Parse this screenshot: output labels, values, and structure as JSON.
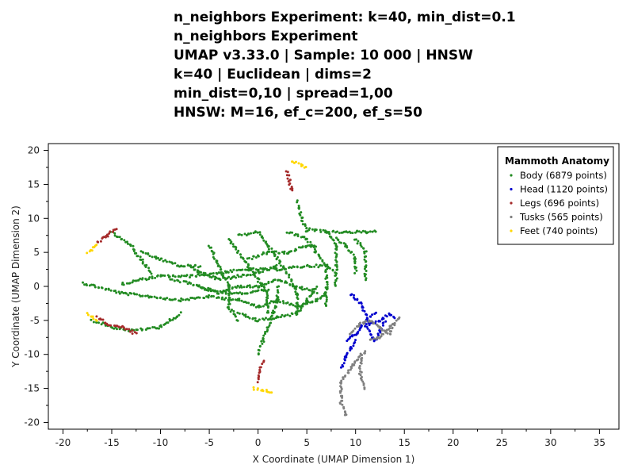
{
  "title_lines": [
    "n_neighbors Experiment: k=40, min_dist=0.1",
    "n_neighbors Experiment",
    "UMAP v3.33.0 | Sample: 10 000 | HNSW",
    "k=40 | Euclidean | dims=2",
    "min_dist=0,10 | spread=1,00",
    "HNSW: M=16, ef_c=200, ef_s=50"
  ],
  "chart_data": {
    "type": "scatter",
    "xlabel": "X Coordinate (UMAP Dimension 1)",
    "ylabel": "Y Coordinate (UMAP Dimension 2)",
    "xlim": [
      -21.5,
      37
    ],
    "ylim": [
      -21,
      21
    ],
    "xticks": [
      -20,
      -15,
      -10,
      -5,
      0,
      5,
      10,
      15,
      20,
      25,
      30,
      35
    ],
    "yticks": [
      -20,
      -15,
      -10,
      -5,
      0,
      5,
      10,
      15,
      20
    ],
    "grid": false,
    "legend": {
      "title": "Mammoth Anatomy",
      "placement": "top-right"
    },
    "series": [
      {
        "name": "Body (6879 points)",
        "color": "#228B22",
        "paths": [
          [
            [
              -18,
              0.5
            ],
            [
              -14,
              -1
            ],
            [
              -11,
              -1.5
            ],
            [
              -8,
              -2
            ],
            [
              -5,
              -1.5
            ],
            [
              -2,
              -2
            ],
            [
              0,
              -3
            ],
            [
              2,
              -2
            ],
            [
              4,
              -3
            ],
            [
              6,
              -2
            ],
            [
              7,
              -1
            ]
          ],
          [
            [
              -14,
              0.3
            ],
            [
              -12,
              1
            ],
            [
              -10,
              1.5
            ],
            [
              -7,
              1.5
            ],
            [
              -4,
              2
            ],
            [
              -1,
              2.5
            ],
            [
              2,
              2.5
            ],
            [
              5,
              3
            ],
            [
              7,
              3
            ],
            [
              8,
              2
            ]
          ],
          [
            [
              -17,
              -5
            ],
            [
              -15,
              -6
            ],
            [
              -13,
              -6.5
            ],
            [
              -10,
              -6
            ],
            [
              -9,
              -5
            ],
            [
              -8,
              -4
            ]
          ],
          [
            [
              -15,
              8
            ],
            [
              -13,
              6
            ],
            [
              -12,
              4
            ],
            [
              -11,
              2
            ]
          ],
          [
            [
              -12,
              5
            ],
            [
              -10,
              4
            ],
            [
              -8,
              3
            ],
            [
              -6,
              3
            ]
          ],
          [
            [
              -5,
              6
            ],
            [
              -4,
              3
            ],
            [
              -3,
              0
            ],
            [
              -3,
              -3
            ],
            [
              -2,
              -5
            ]
          ],
          [
            [
              -3,
              7
            ],
            [
              -2,
              5
            ],
            [
              -1,
              3
            ],
            [
              0,
              1
            ],
            [
              1,
              -1
            ],
            [
              1,
              -4
            ]
          ],
          [
            [
              -2,
              7.5
            ],
            [
              0,
              8
            ],
            [
              1,
              6
            ],
            [
              2,
              4
            ],
            [
              3,
              2
            ],
            [
              4,
              -1
            ],
            [
              4,
              -4
            ]
          ],
          [
            [
              3,
              8
            ],
            [
              5,
              7
            ],
            [
              6,
              5
            ],
            [
              7,
              3
            ],
            [
              7,
              0
            ],
            [
              7,
              -3
            ]
          ],
          [
            [
              5,
              8.5
            ],
            [
              7,
              8
            ],
            [
              8,
              6
            ],
            [
              8,
              3
            ],
            [
              8,
              0
            ]
          ],
          [
            [
              7,
              8
            ],
            [
              9,
              8
            ],
            [
              11,
              8
            ],
            [
              12,
              8
            ]
          ],
          [
            [
              8,
              7
            ],
            [
              9,
              6
            ],
            [
              10,
              4
            ],
            [
              10,
              2
            ]
          ],
          [
            [
              10,
              7
            ],
            [
              11,
              5
            ],
            [
              11,
              3
            ],
            [
              11,
              1
            ]
          ],
          [
            [
              4,
              12.5
            ],
            [
              4.5,
              10
            ],
            [
              5,
              8
            ]
          ],
          [
            [
              0,
              -10
            ],
            [
              0.5,
              -8
            ],
            [
              1,
              -6
            ],
            [
              1.5,
              -4
            ],
            [
              2,
              -2
            ],
            [
              2,
              0
            ]
          ],
          [
            [
              -6,
              0
            ],
            [
              -4,
              -1
            ],
            [
              -2,
              0
            ],
            [
              0,
              0
            ],
            [
              2,
              1
            ],
            [
              4,
              0
            ],
            [
              6,
              -1
            ]
          ],
          [
            [
              -9,
              1
            ],
            [
              -7,
              0.5
            ],
            [
              -5,
              -0.5
            ],
            [
              -3,
              -1
            ],
            [
              -1,
              -1
            ],
            [
              1,
              -0.5
            ]
          ],
          [
            [
              -2,
              -4
            ],
            [
              0,
              -5
            ],
            [
              2,
              -4.5
            ],
            [
              4,
              -4
            ],
            [
              5,
              -2
            ],
            [
              6,
              0
            ]
          ],
          [
            [
              -1,
              4
            ],
            [
              1,
              5
            ],
            [
              3,
              5
            ],
            [
              5,
              6
            ],
            [
              6,
              6
            ]
          ],
          [
            [
              -7,
              3
            ],
            [
              -6,
              2
            ],
            [
              -4,
              1
            ],
            [
              -2,
              1.5
            ],
            [
              0,
              2
            ],
            [
              2,
              3
            ]
          ]
        ]
      },
      {
        "name": "Head (1120 points)",
        "color": "#0000CD",
        "paths": [
          [
            [
              9.5,
              -1
            ],
            [
              10.5,
              -2.5
            ],
            [
              11,
              -4
            ],
            [
              11.5,
              -5.5
            ],
            [
              12.5,
              -5
            ],
            [
              13.5,
              -4
            ],
            [
              14,
              -4.5
            ]
          ],
          [
            [
              9,
              -8
            ],
            [
              10,
              -7
            ],
            [
              10.5,
              -6
            ],
            [
              11,
              -5
            ],
            [
              12,
              -4
            ]
          ],
          [
            [
              8.5,
              -12
            ],
            [
              9,
              -10.5
            ],
            [
              9.5,
              -9
            ],
            [
              10,
              -8
            ]
          ],
          [
            [
              11,
              -5.5
            ],
            [
              11.5,
              -7
            ],
            [
              12,
              -8
            ],
            [
              12.5,
              -6.5
            ],
            [
              13,
              -5
            ]
          ]
        ]
      },
      {
        "name": "Legs (696 points)",
        "color": "#A52A2A",
        "paths": [
          [
            [
              -16.5,
              6.5
            ],
            [
              -15.5,
              7.5
            ],
            [
              -14.5,
              8.5
            ]
          ],
          [
            [
              -16.5,
              -4.5
            ],
            [
              -15.5,
              -5.5
            ],
            [
              -14,
              -6
            ],
            [
              -12.5,
              -7
            ]
          ],
          [
            [
              0,
              -14
            ],
            [
              0.2,
              -12.5
            ],
            [
              0.5,
              -11
            ]
          ],
          [
            [
              3,
              17
            ],
            [
              3.2,
              15.5
            ],
            [
              3.5,
              14
            ]
          ]
        ]
      },
      {
        "name": "Tusks (565 points)",
        "color": "#808080",
        "paths": [
          [
            [
              9,
              -19
            ],
            [
              8.5,
              -17
            ],
            [
              8.5,
              -14
            ],
            [
              9.5,
              -12
            ],
            [
              10.5,
              -10
            ]
          ],
          [
            [
              11,
              -15
            ],
            [
              10.5,
              -13
            ],
            [
              10.5,
              -11
            ],
            [
              11,
              -9.5
            ]
          ],
          [
            [
              9.5,
              -7
            ],
            [
              10.5,
              -5.5
            ],
            [
              11.5,
              -5
            ],
            [
              12.5,
              -6
            ],
            [
              13.5,
              -7
            ],
            [
              14,
              -5.5
            ]
          ],
          [
            [
              11.5,
              -8
            ],
            [
              12.5,
              -7.5
            ],
            [
              13.5,
              -6
            ],
            [
              14.5,
              -4.5
            ]
          ]
        ]
      },
      {
        "name": "Feet (740 points)",
        "color": "#FFD700",
        "paths": [
          [
            [
              -17.5,
              5
            ],
            [
              -16.5,
              6
            ]
          ],
          [
            [
              -17.5,
              -4
            ],
            [
              -16.5,
              -5
            ]
          ],
          [
            [
              -0.5,
              -15
            ],
            [
              1.5,
              -15.5
            ]
          ],
          [
            [
              3.5,
              18.5
            ],
            [
              5,
              17.5
            ]
          ]
        ]
      }
    ]
  }
}
